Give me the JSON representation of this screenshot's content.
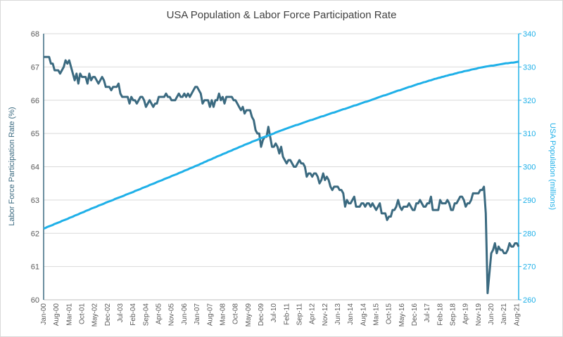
{
  "chart_data": {
    "type": "line",
    "title": "USA Population & Labor Force Participation Rate",
    "ylabel": "Labor Force Participation Rate (%)",
    "y2label": "USA Population (millions)",
    "categories": [
      "Jan-00",
      null,
      null,
      null,
      null,
      null,
      null,
      "Aug-00",
      null,
      null,
      null,
      null,
      null,
      null,
      "Mar-01",
      null,
      null,
      null,
      null,
      null,
      null,
      "Oct-01",
      null,
      null,
      null,
      null,
      null,
      null,
      "May-02",
      null,
      null,
      null,
      null,
      null,
      null,
      "Dec-02",
      null,
      null,
      null,
      null,
      null,
      null,
      "Jul-03",
      null,
      null,
      null,
      null,
      null,
      null,
      "Feb-04",
      null,
      null,
      null,
      null,
      null,
      null,
      "Sep-04",
      null,
      null,
      null,
      null,
      null,
      null,
      "Apr-05",
      null,
      null,
      null,
      null,
      null,
      null,
      "Nov-05",
      null,
      null,
      null,
      null,
      null,
      null,
      "Jun-06",
      null,
      null,
      null,
      null,
      null,
      null,
      "Jan-07",
      null,
      null,
      null,
      null,
      null,
      null,
      "Aug-07",
      null,
      null,
      null,
      null,
      null,
      null,
      "Mar-08",
      null,
      null,
      null,
      null,
      null,
      null,
      "Oct-08",
      null,
      null,
      null,
      null,
      null,
      null,
      "May-09",
      null,
      null,
      null,
      null,
      null,
      null,
      "Dec-09",
      null,
      null,
      null,
      null,
      null,
      null,
      "Jul-10",
      null,
      null,
      null,
      null,
      null,
      null,
      "Feb-11",
      null,
      null,
      null,
      null,
      null,
      null,
      "Sep-11",
      null,
      null,
      null,
      null,
      null,
      null,
      "Apr-12",
      null,
      null,
      null,
      null,
      null,
      null,
      "Nov-12",
      null,
      null,
      null,
      null,
      null,
      null,
      "Jun-13",
      null,
      null,
      null,
      null,
      null,
      null,
      "Jan-14",
      null,
      null,
      null,
      null,
      null,
      null,
      "Aug-14",
      null,
      null,
      null,
      null,
      null,
      null,
      "Mar-15",
      null,
      null,
      null,
      null,
      null,
      null,
      "Oct-15",
      null,
      null,
      null,
      null,
      null,
      null,
      "May-16",
      null,
      null,
      null,
      null,
      null,
      null,
      "Dec-16",
      null,
      null,
      null,
      null,
      null,
      null,
      "Jul-17",
      null,
      null,
      null,
      null,
      null,
      null,
      "Feb-18",
      null,
      null,
      null,
      null,
      null,
      null,
      "Sep-18",
      null,
      null,
      null,
      null,
      null,
      null,
      "Apr-19",
      null,
      null,
      null,
      null,
      null,
      null,
      "Nov-19",
      null,
      null,
      null,
      null,
      null,
      null,
      "Jun-20",
      null,
      null,
      null,
      null,
      null,
      null,
      "Jan-21",
      null,
      null,
      null,
      null,
      null,
      null,
      "Aug-21",
      null
    ],
    "series": [
      {
        "name": "Labor Force Participation Rate",
        "color": "#3b6a80",
        "axis": "y",
        "values": [
          67.3,
          67.3,
          67.3,
          67.3,
          67.1,
          67.1,
          66.9,
          66.9,
          66.9,
          66.8,
          66.9,
          67.0,
          67.2,
          67.1,
          67.2,
          67.0,
          66.8,
          66.6,
          66.8,
          66.5,
          66.8,
          66.7,
          66.7,
          66.7,
          66.5,
          66.8,
          66.6,
          66.7,
          66.7,
          66.6,
          66.5,
          66.6,
          66.7,
          66.6,
          66.4,
          66.4,
          66.4,
          66.3,
          66.4,
          66.4,
          66.4,
          66.5,
          66.2,
          66.1,
          66.1,
          66.1,
          66.1,
          65.9,
          66.1,
          66.0,
          66.0,
          65.9,
          66.0,
          66.1,
          66.1,
          66.0,
          65.8,
          65.9,
          66.0,
          65.9,
          65.8,
          65.9,
          65.9,
          66.1,
          66.1,
          66.1,
          66.1,
          66.2,
          66.1,
          66.1,
          66.0,
          66.0,
          66.0,
          66.1,
          66.2,
          66.1,
          66.1,
          66.2,
          66.1,
          66.2,
          66.1,
          66.2,
          66.3,
          66.4,
          66.4,
          66.3,
          66.2,
          65.9,
          66.0,
          66.0,
          66.0,
          65.8,
          66.0,
          65.8,
          66.0,
          66.0,
          66.2,
          66.0,
          66.1,
          65.9,
          66.1,
          66.1,
          66.1,
          66.1,
          66.0,
          66.0,
          65.9,
          65.8,
          65.7,
          65.8,
          65.6,
          65.7,
          65.7,
          65.7,
          65.5,
          65.4,
          65.1,
          65.0,
          65.0,
          64.6,
          64.8,
          64.9,
          64.9,
          65.2,
          64.9,
          64.6,
          64.6,
          64.7,
          64.6,
          64.4,
          64.6,
          64.3,
          64.2,
          64.1,
          64.2,
          64.2,
          64.1,
          64.0,
          64.0,
          64.1,
          64.2,
          64.1,
          64.1,
          64.0,
          63.7,
          63.8,
          63.8,
          63.7,
          63.8,
          63.8,
          63.7,
          63.5,
          63.6,
          63.8,
          63.6,
          63.7,
          63.6,
          63.4,
          63.3,
          63.4,
          63.4,
          63.4,
          63.3,
          63.3,
          63.2,
          62.8,
          63.0,
          62.9,
          62.9,
          63.0,
          63.1,
          62.8,
          62.8,
          62.8,
          62.9,
          62.9,
          62.8,
          62.9,
          62.9,
          62.8,
          62.9,
          62.8,
          62.7,
          62.8,
          62.9,
          62.6,
          62.6,
          62.6,
          62.4,
          62.5,
          62.5,
          62.7,
          62.7,
          62.8,
          63.0,
          62.8,
          62.7,
          62.8,
          62.8,
          62.8,
          62.9,
          62.8,
          62.7,
          62.7,
          62.9,
          62.9,
          63.0,
          62.9,
          62.8,
          62.8,
          62.9,
          62.9,
          63.1,
          62.7,
          62.7,
          62.7,
          62.7,
          63.0,
          62.9,
          62.9,
          62.9,
          63.0,
          62.9,
          62.7,
          62.7,
          62.9,
          62.9,
          63.0,
          63.1,
          63.1,
          63.0,
          62.8,
          62.9,
          62.9,
          63.0,
          63.2,
          63.2,
          63.2,
          63.2,
          63.3,
          63.3,
          63.4,
          62.6,
          60.2,
          60.8,
          61.4,
          61.5,
          61.7,
          61.4,
          61.6,
          61.5,
          61.5,
          61.4,
          61.4,
          61.5,
          61.7,
          61.6,
          61.6,
          61.7,
          61.7,
          61.6
        ]
      },
      {
        "name": "USA Population",
        "color": "#1fb0e8",
        "axis": "y2",
        "values": [
          281.4,
          281.6,
          281.9,
          282.1,
          282.3,
          282.5,
          282.8,
          283.0,
          283.2,
          283.4,
          283.7,
          283.9,
          284.1,
          284.3,
          284.6,
          284.8,
          285.0,
          285.3,
          285.5,
          285.7,
          286.0,
          286.2,
          286.4,
          286.7,
          286.9,
          287.1,
          287.4,
          287.6,
          287.8,
          288.0,
          288.3,
          288.5,
          288.7,
          288.9,
          289.2,
          289.4,
          289.6,
          289.8,
          290.0,
          290.3,
          290.5,
          290.7,
          290.9,
          291.1,
          291.3,
          291.6,
          291.8,
          292.0,
          292.2,
          292.4,
          292.7,
          292.9,
          293.1,
          293.3,
          293.6,
          293.8,
          294.0,
          294.2,
          294.5,
          294.7,
          294.9,
          295.1,
          295.4,
          295.6,
          295.8,
          296.0,
          296.3,
          296.5,
          296.7,
          296.9,
          297.2,
          297.4,
          297.6,
          297.8,
          298.1,
          298.3,
          298.5,
          298.8,
          299.0,
          299.2,
          299.5,
          299.7,
          299.9,
          300.2,
          300.4,
          300.6,
          300.9,
          301.1,
          301.4,
          301.6,
          301.9,
          302.1,
          302.3,
          302.6,
          302.8,
          303.1,
          303.3,
          303.5,
          303.8,
          304.0,
          304.2,
          304.5,
          304.7,
          304.9,
          305.2,
          305.4,
          305.6,
          305.9,
          306.1,
          306.3,
          306.6,
          306.8,
          307.0,
          307.2,
          307.5,
          307.7,
          307.9,
          308.1,
          308.4,
          308.6,
          308.8,
          309.0,
          309.2,
          309.4,
          309.6,
          309.8,
          310.0,
          310.3,
          310.5,
          310.7,
          310.9,
          311.1,
          311.3,
          311.5,
          311.7,
          311.9,
          312.1,
          312.3,
          312.5,
          312.6,
          312.8,
          313.0,
          313.2,
          313.4,
          313.6,
          313.8,
          314.0,
          314.1,
          314.3,
          314.5,
          314.7,
          314.9,
          315.1,
          315.2,
          315.4,
          315.6,
          315.8,
          316.0,
          316.2,
          316.3,
          316.5,
          316.7,
          316.9,
          317.1,
          317.3,
          317.4,
          317.6,
          317.8,
          318.0,
          318.2,
          318.4,
          318.5,
          318.7,
          318.9,
          319.1,
          319.3,
          319.5,
          319.6,
          319.8,
          320.0,
          320.2,
          320.4,
          320.6,
          320.8,
          321.0,
          321.2,
          321.4,
          321.5,
          321.7,
          321.9,
          322.1,
          322.3,
          322.5,
          322.7,
          322.9,
          323.0,
          323.2,
          323.4,
          323.6,
          323.8,
          324.0,
          324.1,
          324.3,
          324.5,
          324.7,
          324.9,
          325.0,
          325.2,
          325.4,
          325.5,
          325.7,
          325.9,
          326.0,
          326.2,
          326.4,
          326.5,
          326.7,
          326.8,
          327.0,
          327.1,
          327.3,
          327.4,
          327.6,
          327.7,
          327.8,
          328.0,
          328.1,
          328.3,
          328.4,
          328.5,
          328.7,
          328.8,
          328.9,
          329.0,
          329.2,
          329.3,
          329.4,
          329.5,
          329.7,
          329.8,
          329.9,
          330.0,
          330.1,
          330.2,
          330.3,
          330.4,
          330.4,
          330.5,
          330.6,
          330.7,
          330.8,
          330.9,
          331.0,
          331.1,
          331.1,
          331.2,
          331.3,
          331.3,
          331.4,
          331.5,
          331.6
        ]
      }
    ],
    "ylim": [
      60,
      68
    ],
    "yticks": [
      60,
      61,
      62,
      63,
      64,
      65,
      66,
      67,
      68
    ],
    "y2lim": [
      260,
      340
    ],
    "y2ticks": [
      260,
      270,
      280,
      290,
      300,
      310,
      320,
      330,
      340
    ],
    "grid": true
  }
}
